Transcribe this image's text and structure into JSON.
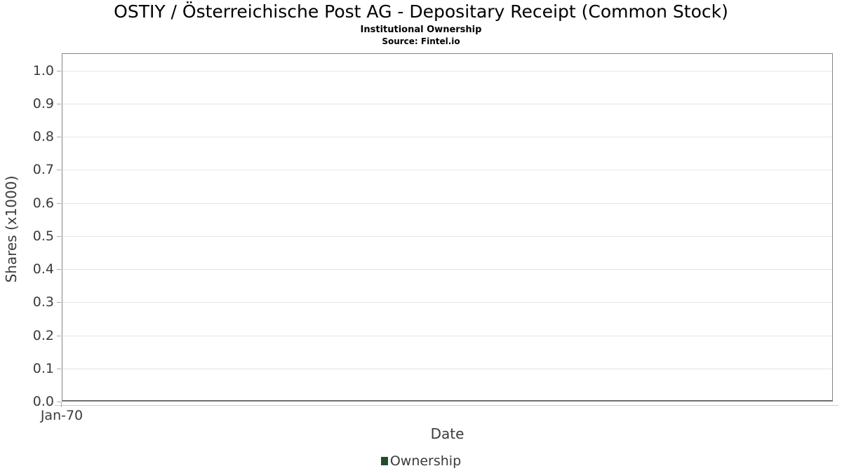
{
  "chart_data": {
    "type": "line",
    "title": "OSTIY / Österreichische Post AG - Depositary Receipt (Common Stock)",
    "subtitle": "Institutional Ownership",
    "source": "Source: Fintel.io",
    "xlabel": "Date",
    "ylabel": "Shares (x1000)",
    "x_ticklabels": [
      "Jan-70"
    ],
    "y_ticklabels": [
      "0.0",
      "0.1",
      "0.2",
      "0.3",
      "0.4",
      "0.5",
      "0.6",
      "0.7",
      "0.8",
      "0.9",
      "1.0"
    ],
    "ylim": [
      0.0,
      1.05
    ],
    "grid": "horizontal",
    "legend_position": "bottom-center",
    "series": [
      {
        "name": "Ownership",
        "color": "#1f4f2a",
        "x": [],
        "values": []
      }
    ],
    "colors": {
      "legend_marker": "#1f4f2a",
      "plot_border": "#848484",
      "gridline": "#e5e5e5",
      "tick_text": "#3b3b3b",
      "title_text": "#000000",
      "background": "#ffffff"
    }
  }
}
